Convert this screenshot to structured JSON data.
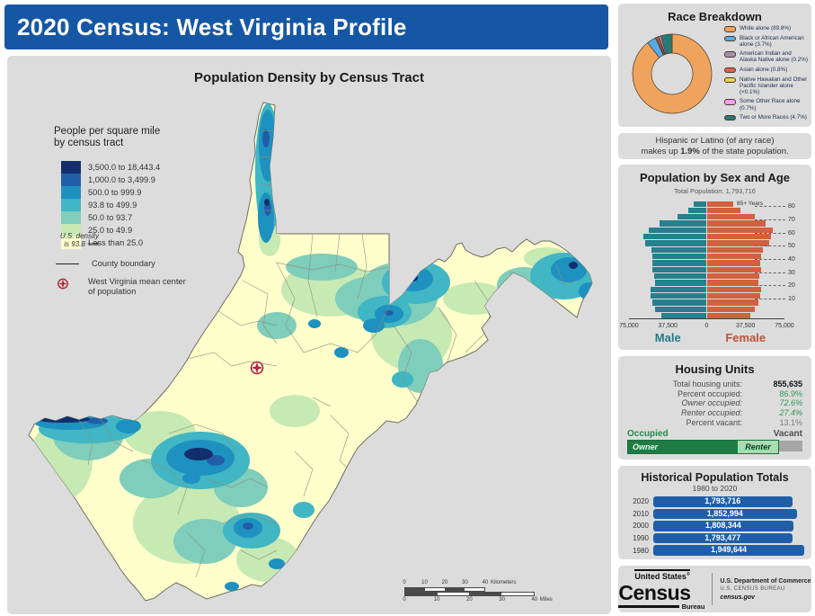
{
  "colors": {
    "header_blue": "#1657a5",
    "male": "#26808d",
    "female": "#d2613e",
    "male_label": "#1f7a8a",
    "female_label": "#c05138",
    "hist_bar": "#1f5fa9",
    "occupied_green": "#1e7c42",
    "renter_green": "#a9dcb0",
    "vacant_gray": "#a6a6a6"
  },
  "header": {
    "title": "2020 Census: West Virginia Profile"
  },
  "map_panel": {
    "title": "Population Density by Census Tract",
    "legend": {
      "title_line1": "People per square mile",
      "title_line2": "by census tract",
      "classes": [
        {
          "label": "3,500.0 to 18,443.4",
          "color": "#132f6b"
        },
        {
          "label": "1,000.0 to 3,499.9",
          "color": "#225ea8"
        },
        {
          "label": "500.0 to 999.9",
          "color": "#1d91c0"
        },
        {
          "label": "93.8 to 499.9",
          "color": "#41b6c4"
        },
        {
          "label": "50.0 to 93.7",
          "color": "#7fcdbb"
        },
        {
          "label": "25.0 to 49.9",
          "color": "#c7e9b4"
        },
        {
          "label": "Less than 25.0",
          "color": "#ffffcc"
        }
      ],
      "us_density_line1": "U.S. density",
      "us_density_line2": "is 93.8",
      "us_density_arrow": "⟶",
      "county_boundary_label": "County boundary",
      "mean_center_line1": "West Virginia mean center",
      "mean_center_line2": "of population"
    },
    "scale_bar": {
      "ticks": [
        "0",
        "10",
        "20",
        "30",
        "40"
      ],
      "km_unit": "Kilometers",
      "mi_unit": "Miles"
    }
  },
  "race_panel": {
    "title": "Race Breakdown"
  },
  "hispanic_note": {
    "line1": "Hispanic or Latino (of any race)",
    "line2_prefix": "makes up ",
    "line2_bold": "1.9%",
    "line2_suffix": " of the state population."
  },
  "pyramid_panel": {
    "title": "Population by Sex and Age",
    "subtitle": "Total Population: 1,793,716",
    "age_top_label": "85+ Years",
    "male_label": "Male",
    "female_label": "Female",
    "xtick_labels": [
      "75,000",
      "37,500",
      "0",
      "37,500",
      "75,000"
    ],
    "age_side_labels": [
      "80",
      "70",
      "60",
      "50",
      "40",
      "30",
      "20",
      "10"
    ]
  },
  "housing_panel": {
    "title": "Housing Units",
    "rows": [
      {
        "label": "Total housing units:",
        "value": "855,635",
        "style": "bold"
      },
      {
        "label": "Percent occupied:",
        "value": "86.9%",
        "style": "green"
      },
      {
        "label": "Owner occupied:",
        "value": "72.6%",
        "style": "green-italic"
      },
      {
        "label": "Renter occupied:",
        "value": "27.4%",
        "style": "green-italic"
      },
      {
        "label": "Percent vacant:",
        "value": "13.1%",
        "style": "gray"
      }
    ],
    "occupied_label": "Occupied",
    "vacant_label": "Vacant",
    "owner_label": "Owner",
    "renter_label": "Renter"
  },
  "historical_panel": {
    "title": "Historical Population Totals",
    "subtitle": "1980 to 2020"
  },
  "footer": {
    "logo_line1": "United States",
    "logo_reg": "®",
    "logo_census": "Census",
    "logo_bureau": "Bureau",
    "right_line1": "U.S. Department of Commerce",
    "right_line2": "U.S. CENSUS BUREAU",
    "right_line3": "census.gov"
  },
  "chart_data": [
    {
      "type": "pie",
      "title": "Race Breakdown",
      "legend_position": "right",
      "labels": [
        "White alone (89.8%)",
        "Black or African American alone (3.7%)",
        "American Indian and Alaska Native alone (0.2%)",
        "Asian alone (0.8%)",
        "Native Hawaiian and Other Pacific Islander alone (<0.1%)",
        "Some Other Race alone (0.7%)",
        "Two or More Races (4.7%)"
      ],
      "values": [
        89.8,
        3.7,
        0.2,
        0.8,
        0.1,
        0.7,
        4.7
      ],
      "colors": [
        "#efa35c",
        "#56abe8",
        "#a78bb5",
        "#e15d57",
        "#ebd14e",
        "#f89beb",
        "#277a76"
      ]
    },
    {
      "type": "bar",
      "orientation": "horizontal-pyramid",
      "title": "Population by Sex and Age",
      "subtitle": "Total Population: 1,793,716",
      "xlim": [
        0,
        75000
      ],
      "xticks": [
        0,
        37500,
        75000
      ],
      "age_groups": [
        "85+",
        "80-84",
        "75-79",
        "70-74",
        "65-69",
        "60-64",
        "55-59",
        "50-54",
        "45-49",
        "40-44",
        "35-39",
        "30-34",
        "25-29",
        "20-24",
        "15-19",
        "10-14",
        "5-9",
        "0-4"
      ],
      "series": [
        {
          "name": "Male",
          "color": "#26808d",
          "values": [
            12500,
            17500,
            29000,
            46500,
            57500,
            62500,
            60500,
            54500,
            53500,
            53500,
            53500,
            52000,
            51000,
            55500,
            55500,
            53500,
            50500,
            45000
          ]
        },
        {
          "name": "Female",
          "color": "#d2613e",
          "values": [
            25500,
            33000,
            47500,
            58000,
            65000,
            63500,
            61500,
            55500,
            54000,
            52500,
            53500,
            52000,
            50500,
            53500,
            52500,
            51000,
            47500,
            42500
          ]
        }
      ]
    },
    {
      "type": "bar",
      "title": "Housing Units occupancy",
      "total_housing_units": 855635,
      "segments": [
        {
          "name": "Occupied",
          "pct": 86.9
        },
        {
          "name": "Owner occupied (of occupied)",
          "pct": 72.6
        },
        {
          "name": "Renter occupied (of occupied)",
          "pct": 27.4
        },
        {
          "name": "Vacant",
          "pct": 13.1
        }
      ]
    },
    {
      "type": "bar",
      "title": "Historical Population Totals",
      "xlabel": "",
      "ylabel": "",
      "categories": [
        "2020",
        "2010",
        "2000",
        "1990",
        "1980"
      ],
      "values": [
        1793716,
        1852994,
        1808344,
        1793477,
        1949644
      ],
      "labels": [
        "1,793,716",
        "1,852,994",
        "1,808,344",
        "1,793,477",
        "1,949,644"
      ]
    }
  ]
}
